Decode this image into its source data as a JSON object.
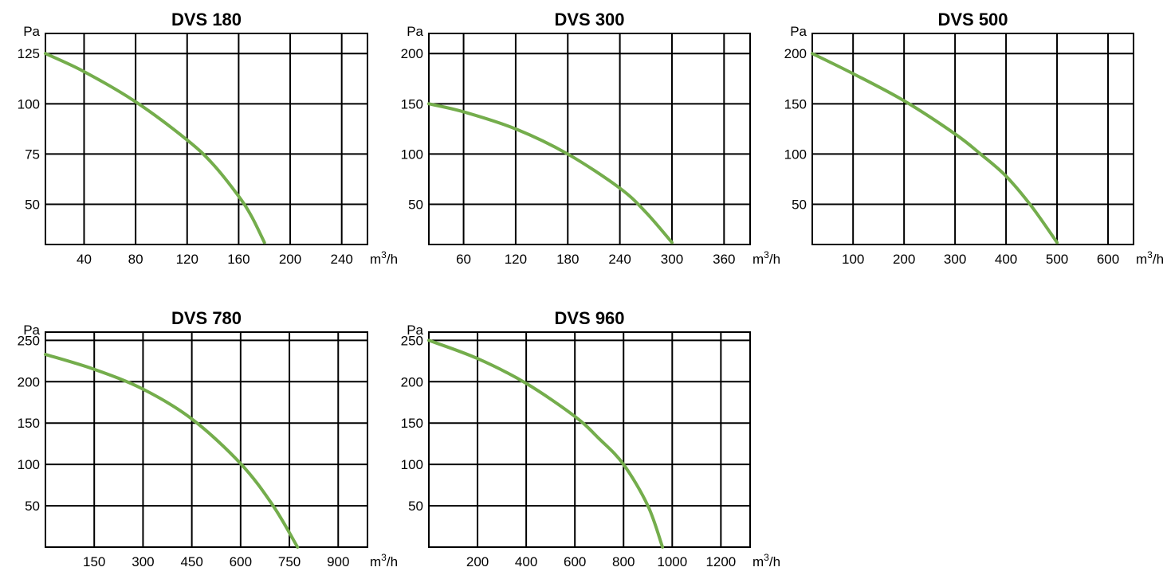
{
  "colors": {
    "curve": "#74ad4c"
  },
  "chart_data": [
    {
      "type": "line",
      "title": "DVS 180",
      "ylabel": "Pa",
      "xlabel_unit": "m",
      "xlabel_sup": "3",
      "xlabel_rest": "/h",
      "xlim": [
        10,
        260
      ],
      "ylim": [
        30,
        135
      ],
      "xticks": [
        40,
        80,
        120,
        160,
        200,
        240
      ],
      "xtick_labels": [
        "40",
        "80",
        "120",
        "160",
        "200",
        "240"
      ],
      "yticks": [
        50,
        75,
        100,
        125
      ],
      "ytick_labels": [
        "50",
        "75",
        "100",
        "125"
      ],
      "series": [
        {
          "x": [
            10,
            40,
            80,
            120,
            140,
            160,
            170,
            180
          ],
          "y": [
            125,
            116,
            101,
            82,
            70,
            54,
            44,
            31
          ]
        }
      ]
    },
    {
      "type": "line",
      "title": "DVS 300",
      "ylabel": "Pa",
      "xlabel_unit": "m",
      "xlabel_sup": "3",
      "xlabel_rest": "/h",
      "xlim": [
        20,
        390
      ],
      "ylim": [
        10,
        220
      ],
      "xticks": [
        60,
        120,
        180,
        240,
        300,
        360
      ],
      "xtick_labels": [
        "60",
        "120",
        "180",
        "240",
        "300",
        "360"
      ],
      "yticks": [
        50,
        100,
        150,
        200
      ],
      "ytick_labels": [
        "50",
        "100",
        "150",
        "200"
      ],
      "series": [
        {
          "x": [
            20,
            60,
            120,
            180,
            240,
            270,
            300
          ],
          "y": [
            150,
            142,
            125,
            100,
            66,
            42,
            12
          ]
        }
      ]
    },
    {
      "type": "line",
      "title": "DVS 500",
      "ylabel": "Pa",
      "xlabel_unit": "m",
      "xlabel_sup": "3",
      "xlabel_rest": "/h",
      "xlim": [
        20,
        650
      ],
      "ylim": [
        10,
        220
      ],
      "xticks": [
        100,
        200,
        300,
        400,
        500,
        600
      ],
      "xtick_labels": [
        "100",
        "200",
        "300",
        "400",
        "500",
        "600"
      ],
      "yticks": [
        50,
        100,
        150,
        200
      ],
      "ytick_labels": [
        "50",
        "100",
        "150",
        "200"
      ],
      "series": [
        {
          "x": [
            20,
            100,
            200,
            300,
            350,
            400,
            450,
            500
          ],
          "y": [
            200,
            180,
            153,
            120,
            100,
            78,
            48,
            12
          ]
        }
      ]
    },
    {
      "type": "line",
      "title": "DVS 780",
      "ylabel": "Pa",
      "xlabel_unit": "m",
      "xlabel_sup": "3",
      "xlabel_rest": "/h",
      "xlim": [
        0,
        990
      ],
      "ylim": [
        0,
        260
      ],
      "xticks": [
        150,
        300,
        450,
        600,
        750,
        900
      ],
      "xtick_labels": [
        "150",
        "300",
        "450",
        "600",
        "750",
        "900"
      ],
      "yticks": [
        50,
        100,
        150,
        200,
        250
      ],
      "ytick_labels": [
        "50",
        "100",
        "150",
        "200",
        "250"
      ],
      "series": [
        {
          "x": [
            0,
            150,
            300,
            450,
            600,
            700,
            775
          ],
          "y": [
            233,
            215,
            191,
            155,
            101,
            50,
            0
          ]
        }
      ]
    },
    {
      "type": "line",
      "title": "DVS 960",
      "ylabel": "Pa",
      "xlabel_unit": "m",
      "xlabel_sup": "3",
      "xlabel_rest": "/h",
      "xlim": [
        0,
        1320
      ],
      "ylim": [
        0,
        260
      ],
      "xticks": [
        200,
        400,
        600,
        800,
        1000,
        1200
      ],
      "xtick_labels": [
        "200",
        "400",
        "600",
        "800",
        "1000",
        "1200"
      ],
      "yticks": [
        50,
        100,
        150,
        200,
        250
      ],
      "ytick_labels": [
        "50",
        "100",
        "150",
        "200",
        "250"
      ],
      "series": [
        {
          "x": [
            0,
            200,
            400,
            600,
            700,
            800,
            900,
            960
          ],
          "y": [
            250,
            228,
            198,
            158,
            131,
            100,
            50,
            0
          ]
        }
      ]
    }
  ]
}
